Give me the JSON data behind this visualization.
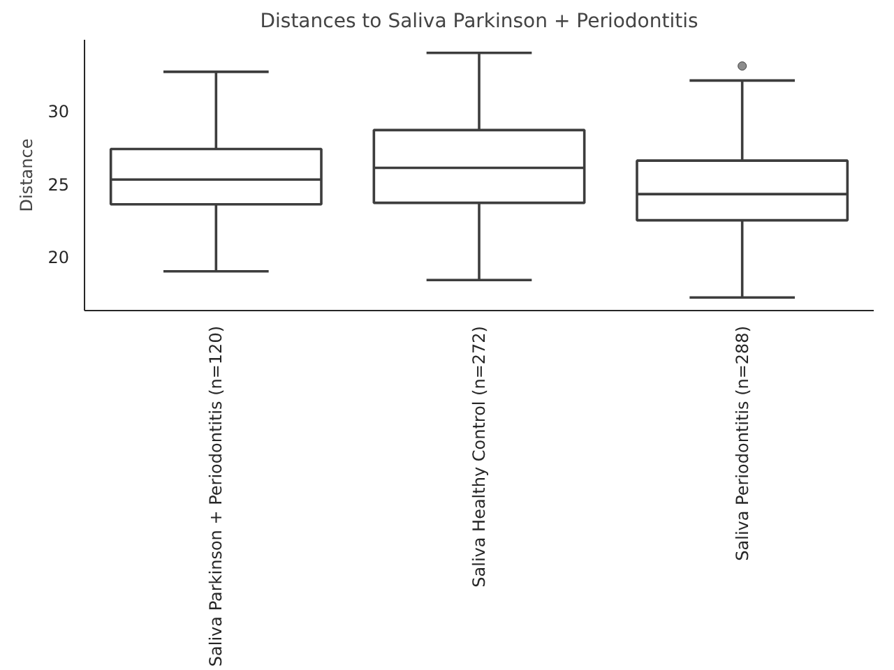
{
  "chart_data": {
    "type": "box",
    "title": "Distances to Saliva Parkinson + Periodontitis",
    "ylabel": "Distance",
    "categories": [
      "Saliva Parkinson + Periodontitis (n=120)",
      "Saliva Healthy Control (n=272)",
      "Saliva Periodontitis (n=288)"
    ],
    "boxes": [
      {
        "low": 19.0,
        "q1": 23.6,
        "median": 25.3,
        "q3": 27.4,
        "high": 32.7
      },
      {
        "low": 18.4,
        "q1": 23.7,
        "median": 26.1,
        "q3": 28.7,
        "high": 34.0
      },
      {
        "low": 17.2,
        "q1": 22.5,
        "median": 24.3,
        "q3": 26.6,
        "high": 32.1,
        "outliers": [
          33.1
        ]
      }
    ],
    "color": "#3d3d3d",
    "ylim": [
      16.3,
      34.9
    ],
    "yticks": [
      20,
      25,
      30
    ],
    "grid": false
  }
}
